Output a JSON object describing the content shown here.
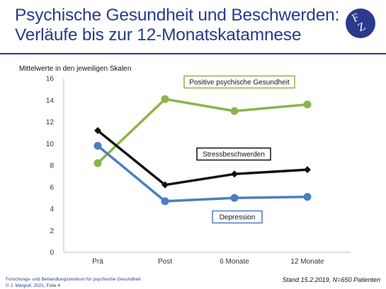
{
  "slide": {
    "title_line1": "Psychische Gesundheit und Beschwerden:",
    "title_line2": "Verläufe bis zur 12-Monatskatamnese",
    "logo_text_1": "F",
    "logo_text_2": "Z",
    "footer_org": "Forschungs- und Behandlungszentrum für psychische Gesundheit",
    "footer_copyright": "© J. Margraf, 2021, Folie 4",
    "footer_right": "Stand 15.2.2019, N=650 Patienten"
  },
  "chart_data": {
    "type": "line",
    "subtitle": "Mittelwerte in den jeweiligen Skalen",
    "categories": [
      "Prä",
      "Post",
      "6 Monate",
      "12 Monate"
    ],
    "ylim": [
      0,
      16
    ],
    "yticks": [
      0,
      2,
      4,
      6,
      8,
      10,
      12,
      14,
      16
    ],
    "grid": false,
    "legend": "labels boxed next to lines",
    "series": [
      {
        "name": "Positive psychische Gesundheit",
        "values": [
          8.2,
          14.1,
          13.0,
          13.6
        ],
        "color": "#8cb44a",
        "marker": "circle"
      },
      {
        "name": "Stressbeschwerden",
        "values": [
          11.2,
          6.2,
          7.2,
          7.6
        ],
        "color": "#111111",
        "marker": "diamond"
      },
      {
        "name": "Depression",
        "values": [
          9.8,
          4.7,
          5.0,
          5.1
        ],
        "color": "#4a7fc0",
        "marker": "circle"
      }
    ]
  }
}
